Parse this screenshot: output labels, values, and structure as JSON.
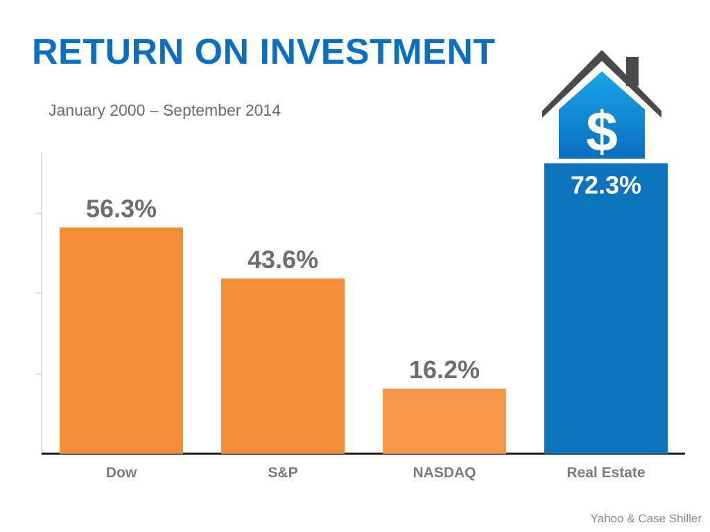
{
  "header": {
    "title": "RETURN ON INVESTMENT",
    "subtitle": "January 2000 – September 2014"
  },
  "footer": {
    "source": "Yahoo & Case Shiller"
  },
  "colors": {
    "title": "#0a6fbf",
    "bar_orange": "#f28e37",
    "bar_orange_light": "#f5984a",
    "bar_blue": "#0c73bc",
    "value_label": "#6e6e6e",
    "value_label_highlight": "#ffffff",
    "axis": "#1a1a1a",
    "tick": "#bdbdbd",
    "roof": "#4a4a4a",
    "house_gradient_top": "#1aa5e6",
    "house_gradient_bottom": "#0a6fbf"
  },
  "icons": {
    "house": "house-dollar-icon",
    "dollar_glyph": "$"
  },
  "chart_data": {
    "type": "bar",
    "title": "RETURN ON INVESTMENT",
    "subtitle": "January 2000 – September 2014",
    "categories": [
      "Dow",
      "S&P",
      "NASDAQ",
      "Real Estate"
    ],
    "values": [
      56.3,
      43.6,
      16.2,
      72.3
    ],
    "value_labels": [
      "56.3%",
      "43.6%",
      "16.2%",
      "72.3%"
    ],
    "highlight_index": 3,
    "ylim": [
      0,
      75
    ],
    "grid": false,
    "legend": "none",
    "xlabel": "",
    "ylabel": ""
  }
}
